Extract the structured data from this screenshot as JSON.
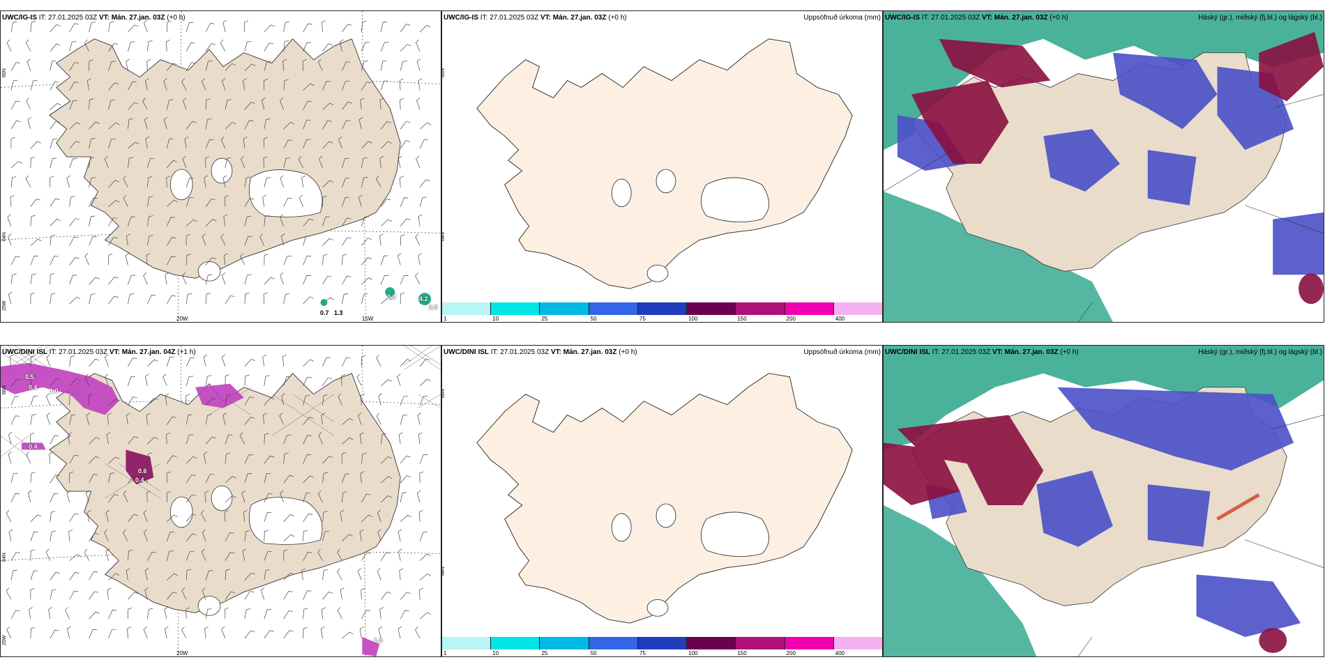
{
  "panels": {
    "p1": {
      "model": "UWC/IG-IS",
      "it_label": "IT:",
      "it": "27.01.2025 03Z",
      "vt_label": "VT:",
      "vt": "Mán. 27.jan. 03Z",
      "offset": "(+0 h)",
      "right": ""
    },
    "p2": {
      "model": "UWC/IG-IS",
      "it_label": "IT:",
      "it": "27.01.2025 03Z",
      "vt_label": "VT:",
      "vt": "Mán. 27.jan. 03Z",
      "offset": "(+0 h)",
      "right": "Uppsöfnuð úrkoma (mm)"
    },
    "p3": {
      "model": "UWC/IG-IS",
      "it_label": "IT:",
      "it": "27.01.2025 03Z",
      "vt_label": "VT:",
      "vt": "Mán. 27.jan. 03Z",
      "offset": "(+0 h)",
      "right": "Háský (gr.), miðský (fj.bl.) og lágský (bl.)"
    },
    "p4": {
      "model": "UWC/DINI ISL",
      "it_label": "IT:",
      "it": "27.01.2025 03Z",
      "vt_label": "VT:",
      "vt": "Mán. 27.jan. 04Z",
      "offset": "(+1 h)",
      "right": ""
    },
    "p5": {
      "model": "UWC/DINI ISL",
      "it_label": "IT:",
      "it": "27.01.2025 03Z",
      "vt_label": "VT:",
      "vt": "Mán. 27.jan. 03Z",
      "offset": "(+0 h)",
      "right": "Uppsöfnuð úrkoma (mm)"
    },
    "p6": {
      "model": "UWC/DINI ISL",
      "it_label": "IT:",
      "it": "27.01.2025 03Z",
      "vt_label": "VT:",
      "vt": "Mán. 27.jan. 03Z",
      "offset": "(+0 h)",
      "right": "Háský (gr.), miðský (fj.bl.) og lágský (bl.)"
    }
  },
  "axis_labels": {
    "lat_65": "65N",
    "lat_64": "64N",
    "lat_63": "63N",
    "lat_66": "66N",
    "lon_25w": "25W",
    "lon_20w": "20W",
    "lon_15w": "15W"
  },
  "precip_values_top": [
    "0.7",
    "1.3",
    "2.3",
    "4.2",
    "2.0"
  ],
  "precip_values_bottom": [
    "0.5",
    "0.4",
    "1.0",
    "0.4",
    "0.6",
    "0.4",
    "1.0"
  ],
  "colorbar": {
    "labels": [
      "1",
      "10",
      "25",
      "50",
      "75",
      "100",
      "150",
      "200",
      "400"
    ],
    "colors": [
      "#b9f5f5",
      "#00e6e6",
      "#00b8e6",
      "#3366e6",
      "#1f3dbd",
      "#6b0050",
      "#b0107a",
      "#f000b0",
      "#f5b0f0"
    ]
  },
  "colors": {
    "land": "#eadccb",
    "land_light": "#fdf0e2",
    "cloud_high": "#2aa58a",
    "cloud_mid": "#4a50c8",
    "cloud_low": "#8a1040",
    "precip": "#c040c0"
  }
}
